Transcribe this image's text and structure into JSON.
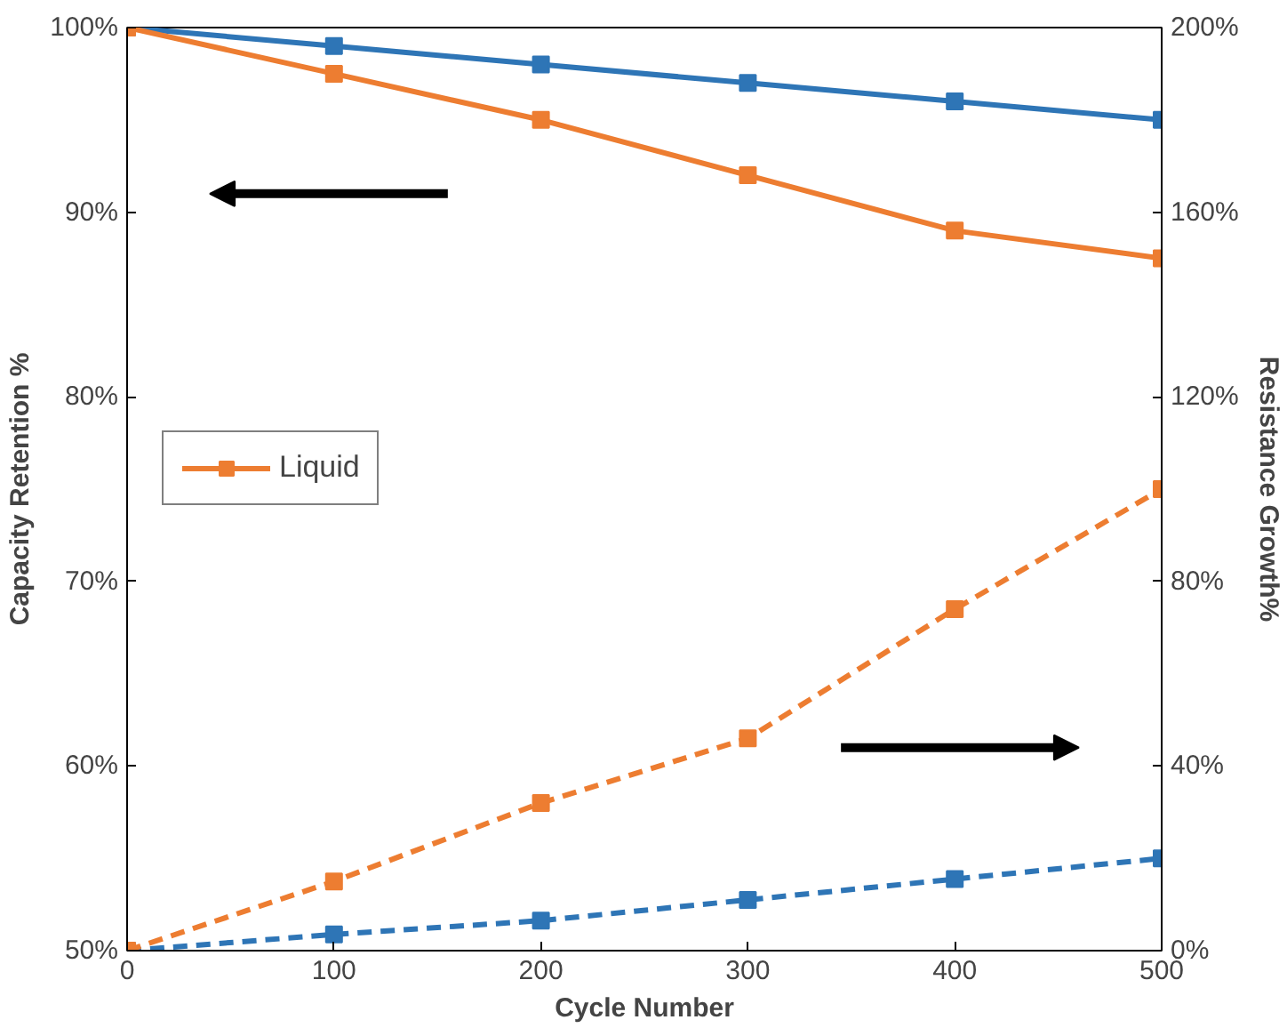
{
  "chart_data": {
    "type": "line",
    "xlabel": "Cycle Number",
    "ylabel": "Capacity Retention %",
    "y2label": "Resistance Growth%",
    "x": [
      0,
      100,
      200,
      300,
      400,
      500
    ],
    "xlim": [
      0,
      500
    ],
    "xticks": [
      0,
      100,
      200,
      300,
      400,
      500
    ],
    "ylim": [
      50,
      100
    ],
    "yticks": [
      {
        "value": 50,
        "label": "50%"
      },
      {
        "value": 60,
        "label": "60%"
      },
      {
        "value": 70,
        "label": "70%"
      },
      {
        "value": 80,
        "label": "80%"
      },
      {
        "value": 90,
        "label": "90%"
      },
      {
        "value": 100,
        "label": "100%"
      }
    ],
    "y2lim": [
      0,
      200
    ],
    "y2ticks": [
      {
        "value": 0,
        "label": "0%"
      },
      {
        "value": 40,
        "label": "40%"
      },
      {
        "value": 80,
        "label": "80%"
      },
      {
        "value": 120,
        "label": "120%"
      },
      {
        "value": 160,
        "label": "160%"
      },
      {
        "value": 200,
        "label": "200%"
      }
    ],
    "series": [
      {
        "color": "#2e75b6",
        "values": [
          100,
          99,
          98,
          97,
          96,
          95
        ],
        "line_style": "solid"
      },
      {
        "name": "Liquid",
        "color": "#ed7d31",
        "values": [
          100,
          97.5,
          95,
          92,
          89,
          87.5
        ],
        "line_style": "solid"
      },
      {
        "color": "#2e75b6",
        "values": [
          0,
          3.5,
          6.5,
          11,
          15.5,
          20
        ],
        "axis": "y2",
        "line_style": "dashed"
      },
      {
        "color": "#ed7d31",
        "values": [
          0,
          15,
          32,
          46,
          74,
          100
        ],
        "axis": "y2",
        "line_style": "dashed"
      }
    ],
    "marker": "square",
    "grid": false,
    "legend": "left"
  }
}
